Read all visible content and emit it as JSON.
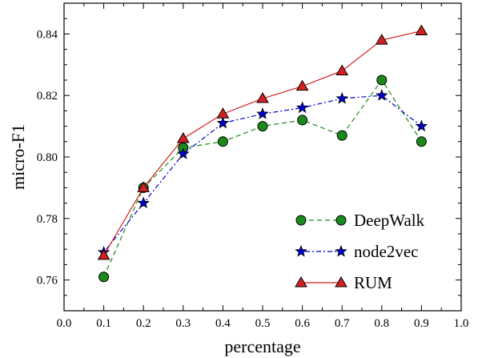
{
  "chart_data": {
    "type": "line",
    "title": "",
    "xlabel": "percentage",
    "ylabel": "micro-F1",
    "xlim": [
      0.0,
      1.0
    ],
    "ylim": [
      0.75,
      0.85
    ],
    "xticks": [
      0.0,
      0.1,
      0.2,
      0.3,
      0.4,
      0.5,
      0.6,
      0.7,
      0.8,
      0.9,
      1.0
    ],
    "xtick_labels": [
      "0.0",
      "0.1",
      "0.2",
      "0.3",
      "0.4",
      "0.5",
      "0.6",
      "0.7",
      "0.8",
      "0.9",
      "1.0"
    ],
    "yticks": [
      0.76,
      0.78,
      0.8,
      0.82,
      0.84
    ],
    "ytick_labels": [
      "0.76",
      "0.78",
      "0.80",
      "0.82",
      "0.84"
    ],
    "grid": false,
    "legend_position": "lower-right",
    "x": [
      0.1,
      0.2,
      0.3,
      0.4,
      0.5,
      0.6,
      0.7,
      0.8,
      0.9
    ],
    "series": [
      {
        "name": "DeepWalk",
        "values": [
          0.761,
          0.79,
          0.803,
          0.805,
          0.81,
          0.812,
          0.807,
          0.825,
          0.805
        ],
        "color": "#1a8a1a",
        "marker": "circle",
        "line": "dashed"
      },
      {
        "name": "node2vec",
        "values": [
          0.769,
          0.785,
          0.801,
          0.811,
          0.814,
          0.816,
          0.819,
          0.82,
          0.81
        ],
        "color": "#0000cc",
        "marker": "star",
        "line": "dashdot"
      },
      {
        "name": "RUM",
        "values": [
          0.768,
          0.79,
          0.806,
          0.814,
          0.819,
          0.823,
          0.828,
          0.838,
          0.841
        ],
        "color": "#d42020",
        "marker": "triangle",
        "line": "solid"
      }
    ]
  }
}
